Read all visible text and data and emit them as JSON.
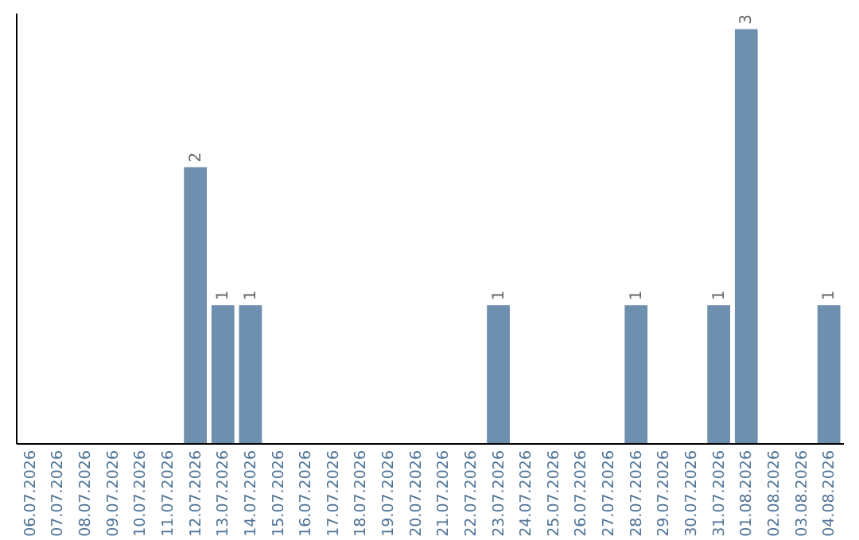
{
  "chart_data": {
    "type": "bar",
    "categories": [
      "06.07.2026",
      "07.07.2026",
      "08.07.2026",
      "09.07.2026",
      "10.07.2026",
      "11.07.2026",
      "12.07.2026",
      "13.07.2026",
      "14.07.2026",
      "15.07.2026",
      "16.07.2026",
      "17.07.2026",
      "18.07.2026",
      "19.07.2026",
      "20.07.2026",
      "21.07.2026",
      "22.07.2026",
      "23.07.2026",
      "24.07.2026",
      "25.07.2026",
      "26.07.2026",
      "27.07.2026",
      "28.07.2026",
      "29.07.2026",
      "30.07.2026",
      "31.07.2026",
      "01.08.2026",
      "02.08.2026",
      "03.08.2026",
      "04.08.2026"
    ],
    "values": [
      0,
      0,
      0,
      0,
      0,
      0,
      2,
      1,
      1,
      0,
      0,
      0,
      0,
      0,
      0,
      0,
      0,
      1,
      0,
      0,
      0,
      0,
      1,
      0,
      0,
      1,
      3,
      0,
      0,
      1
    ],
    "value_labels": [
      null,
      null,
      null,
      null,
      null,
      null,
      "2",
      "1",
      "1",
      null,
      null,
      null,
      null,
      null,
      null,
      null,
      null,
      "1",
      null,
      null,
      null,
      null,
      "1",
      null,
      null,
      "1",
      "3",
      null,
      null,
      "1"
    ],
    "color": "#6e8fad",
    "tick_labels": "x"
  }
}
